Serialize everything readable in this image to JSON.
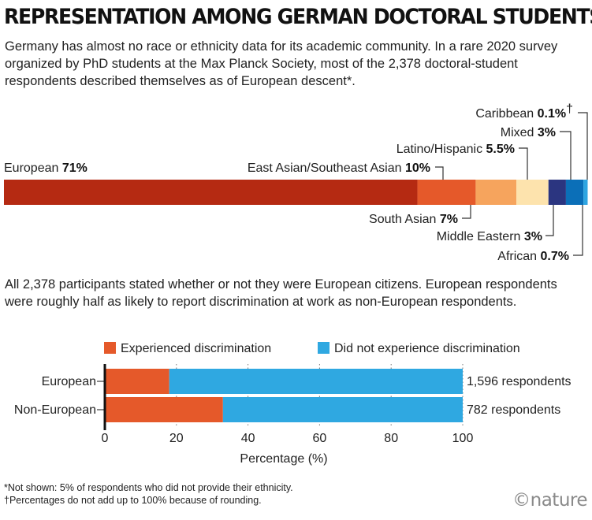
{
  "header": {
    "title": "REPRESENTATION AMONG GERMAN DOCTORAL STUDENTS",
    "intro": "Germany has almost no race or ethnicity data for its academic community. In a rare 2020 survey organized by PhD students at the Max Planck Society, most of the 2,378 doctoral-student respondents described themselves as of European descent*."
  },
  "middle_text": "All 2,378 participants stated whether or not they were European citizens. European respondents were roughly half as likely to report discrimination at work as non-European respondents.",
  "footnotes": {
    "note1": "*Not shown: 5% of respondents who did not provide their ethnicity.",
    "note2": "†Percentages do not add up to 100% because of rounding."
  },
  "logo": "©nature",
  "chart_data": [
    {
      "type": "bar",
      "stacked": true,
      "orientation": "horizontal",
      "unit": "%",
      "segments": [
        {
          "name": "European",
          "value": 71,
          "label": "71%",
          "color": "#b52a12"
        },
        {
          "name": "East Asian/Southeast Asian",
          "value": 10,
          "label": "10%",
          "color": "#e5592a"
        },
        {
          "name": "South Asian",
          "value": 7,
          "label": "7%",
          "color": "#f6a45d"
        },
        {
          "name": "Latino/Hispanic",
          "value": 5.5,
          "label": "5.5%",
          "color": "#fde3ad"
        },
        {
          "name": "Middle Eastern",
          "value": 3,
          "label": "3%",
          "color": "#2b3580"
        },
        {
          "name": "Mixed",
          "value": 3,
          "label": "3%",
          "color": "#0b6fb8"
        },
        {
          "name": "African",
          "value": 0.7,
          "label": "0.7%",
          "color": "#2fa5e1"
        },
        {
          "name": "Caribbean",
          "value": 0.1,
          "label": "0.1%",
          "dagger": "†",
          "color": "#9fd2f1"
        }
      ]
    },
    {
      "type": "bar",
      "stacked": true,
      "orientation": "horizontal",
      "categories": [
        "European",
        "Non-European"
      ],
      "series": [
        {
          "name": "Experienced discrimination",
          "color": "#e5592a",
          "values": [
            18,
            33
          ]
        },
        {
          "name": "Did not experience discrimination",
          "color": "#2fa8e1",
          "values": [
            82,
            67
          ]
        }
      ],
      "respondents": [
        "1,596 respondents",
        "782 respondents"
      ],
      "xlabel": "Percentage (%)",
      "xlim": [
        0,
        100
      ],
      "xticks": [
        0,
        20,
        40,
        60,
        80,
        100
      ],
      "grid": true
    }
  ]
}
